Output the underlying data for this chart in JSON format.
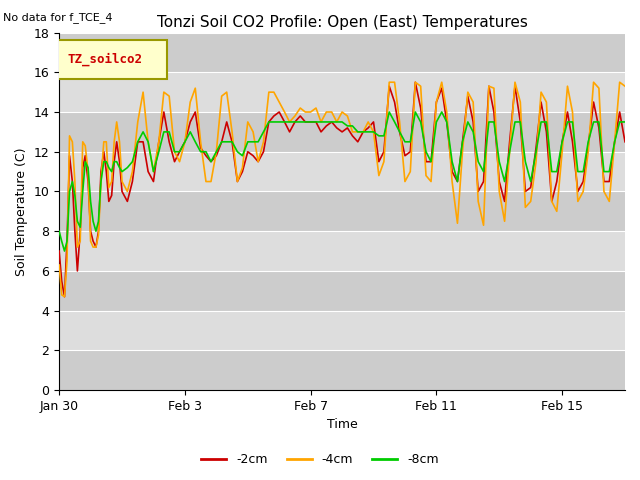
{
  "title": "Tonzi Soil CO2 Profile: Open (East) Temperatures",
  "subtitle": "No data for f_TCE_4",
  "xlabel": "Time",
  "ylabel": "Soil Temperature (C)",
  "ylim": [
    0,
    18
  ],
  "yticks": [
    0,
    2,
    4,
    6,
    8,
    10,
    12,
    14,
    16,
    18
  ],
  "legend_label": "TZ_soilco2",
  "series_labels": [
    "-2cm",
    "-4cm",
    "-8cm"
  ],
  "series_colors": [
    "#cc0000",
    "#ffa500",
    "#00cc00"
  ],
  "background_color": "#ffffff",
  "plot_bg_bands": [
    [
      0,
      2,
      "#cccccc"
    ],
    [
      2,
      4,
      "#dddddd"
    ],
    [
      4,
      6,
      "#cccccc"
    ],
    [
      6,
      8,
      "#dddddd"
    ],
    [
      8,
      10,
      "#cccccc"
    ],
    [
      10,
      12,
      "#dddddd"
    ],
    [
      12,
      14,
      "#cccccc"
    ],
    [
      14,
      16,
      "#dddddd"
    ],
    [
      16,
      18,
      "#cccccc"
    ]
  ],
  "xtick_labels": [
    "Jan 30",
    "Feb 3",
    "Feb 7",
    "Feb 11",
    "Feb 15"
  ],
  "xtick_positions": [
    0,
    4,
    8,
    12,
    16
  ],
  "xlim": [
    0,
    18.0
  ],
  "grid_color": "#ffffff",
  "title_fontsize": 11,
  "axis_fontsize": 9,
  "tick_fontsize": 9,
  "linewidth": 1.2,
  "t_2cm": [
    0.0,
    0.08,
    0.17,
    0.25,
    0.33,
    0.42,
    0.5,
    0.58,
    0.67,
    0.75,
    0.83,
    0.92,
    1.0,
    1.08,
    1.17,
    1.25,
    1.33,
    1.42,
    1.5,
    1.58,
    1.67,
    1.75,
    1.83,
    1.92,
    2.0,
    2.17,
    2.33,
    2.5,
    2.67,
    2.83,
    3.0,
    3.17,
    3.33,
    3.5,
    3.67,
    3.83,
    4.0,
    4.17,
    4.33,
    4.5,
    4.67,
    4.83,
    5.0,
    5.17,
    5.33,
    5.5,
    5.67,
    5.83,
    6.0,
    6.17,
    6.33,
    6.5,
    6.67,
    6.83,
    7.0,
    7.17,
    7.33,
    7.5,
    7.67,
    7.83,
    8.0,
    8.17,
    8.33,
    8.5,
    8.67,
    8.83,
    9.0,
    9.17,
    9.33,
    9.5,
    9.67,
    9.83,
    10.0,
    10.17,
    10.33,
    10.5,
    10.67,
    10.83,
    11.0,
    11.17,
    11.33,
    11.5,
    11.67,
    11.83,
    12.0,
    12.17,
    12.33,
    12.5,
    12.67,
    12.83,
    13.0,
    13.17,
    13.33,
    13.5,
    13.67,
    13.83,
    14.0,
    14.17,
    14.33,
    14.5,
    14.67,
    14.83,
    15.0,
    15.17,
    15.33,
    15.5,
    15.67,
    15.83,
    16.0,
    16.17,
    16.33,
    16.5,
    16.67,
    16.83,
    17.0,
    17.17,
    17.33,
    17.5,
    17.67,
    17.83,
    18.0
  ],
  "v_2cm": [
    7.0,
    5.5,
    4.7,
    7.5,
    11.8,
    10.5,
    8.0,
    6.0,
    8.0,
    11.2,
    11.8,
    10.5,
    8.0,
    7.5,
    7.2,
    8.0,
    11.0,
    12.0,
    11.0,
    9.5,
    9.8,
    11.5,
    12.5,
    11.5,
    10.0,
    9.5,
    10.5,
    12.5,
    12.5,
    11.0,
    10.5,
    12.5,
    14.0,
    12.5,
    11.5,
    12.0,
    12.5,
    13.5,
    14.0,
    12.2,
    11.8,
    11.5,
    11.8,
    12.5,
    13.5,
    12.5,
    10.5,
    11.0,
    12.0,
    11.8,
    11.5,
    12.0,
    13.5,
    13.8,
    14.0,
    13.5,
    13.0,
    13.5,
    13.8,
    13.5,
    13.5,
    13.5,
    13.0,
    13.3,
    13.5,
    13.2,
    13.0,
    13.2,
    12.8,
    12.5,
    13.0,
    13.2,
    13.5,
    11.5,
    12.0,
    15.3,
    14.5,
    13.0,
    11.8,
    12.0,
    15.5,
    14.2,
    11.5,
    11.5,
    14.5,
    15.2,
    13.5,
    11.0,
    10.5,
    12.5,
    14.8,
    13.5,
    10.0,
    10.5,
    15.3,
    14.0,
    10.5,
    9.5,
    12.5,
    15.3,
    13.5,
    10.0,
    10.2,
    12.2,
    14.5,
    13.0,
    9.5,
    10.5,
    12.5,
    14.0,
    12.5,
    10.0,
    10.5,
    12.3,
    14.5,
    13.2,
    10.5,
    10.5,
    12.5,
    14.0,
    12.5
  ],
  "v_4cm": [
    6.3,
    4.8,
    4.7,
    6.5,
    12.8,
    12.5,
    10.5,
    7.2,
    7.5,
    12.5,
    12.3,
    11.0,
    7.5,
    7.2,
    7.2,
    7.8,
    10.5,
    12.5,
    12.5,
    10.2,
    10.5,
    12.5,
    13.5,
    12.5,
    10.5,
    10.0,
    11.0,
    13.5,
    15.0,
    12.5,
    11.0,
    12.5,
    15.0,
    14.8,
    12.0,
    11.5,
    12.5,
    14.5,
    15.2,
    12.5,
    10.5,
    10.5,
    12.0,
    14.8,
    15.0,
    13.0,
    10.5,
    11.2,
    13.5,
    13.0,
    11.5,
    12.5,
    15.0,
    15.0,
    14.5,
    14.0,
    13.5,
    13.8,
    14.2,
    14.0,
    14.0,
    14.2,
    13.5,
    14.0,
    14.0,
    13.5,
    14.0,
    13.8,
    13.0,
    13.0,
    13.0,
    13.5,
    13.0,
    10.8,
    11.5,
    15.5,
    15.5,
    13.5,
    10.5,
    11.0,
    15.5,
    15.3,
    10.8,
    10.5,
    14.5,
    15.5,
    14.0,
    10.5,
    8.4,
    12.0,
    15.0,
    14.5,
    9.5,
    8.3,
    15.3,
    15.2,
    10.0,
    8.5,
    12.0,
    15.5,
    14.5,
    9.2,
    9.5,
    11.5,
    15.0,
    14.5,
    9.5,
    9.0,
    12.0,
    15.3,
    14.0,
    9.5,
    10.0,
    12.0,
    15.5,
    15.2,
    10.0,
    9.5,
    12.5,
    15.5,
    15.3
  ],
  "v_8cm": [
    8.0,
    7.5,
    7.0,
    7.5,
    10.0,
    10.5,
    9.8,
    8.5,
    8.2,
    10.0,
    11.5,
    11.2,
    9.5,
    8.5,
    8.0,
    8.5,
    10.5,
    11.5,
    11.5,
    11.2,
    11.0,
    11.5,
    11.5,
    11.2,
    11.0,
    11.2,
    11.5,
    12.5,
    13.0,
    12.5,
    11.0,
    12.0,
    13.0,
    13.0,
    12.0,
    12.0,
    12.5,
    13.0,
    12.5,
    12.0,
    12.0,
    11.5,
    12.0,
    12.5,
    12.5,
    12.5,
    12.0,
    11.8,
    12.5,
    12.5,
    12.5,
    13.0,
    13.5,
    13.5,
    13.5,
    13.5,
    13.5,
    13.5,
    13.5,
    13.5,
    13.5,
    13.5,
    13.5,
    13.5,
    13.5,
    13.5,
    13.5,
    13.3,
    13.3,
    13.0,
    13.0,
    13.0,
    13.0,
    12.8,
    12.8,
    14.0,
    13.5,
    13.0,
    12.5,
    12.5,
    14.0,
    13.5,
    12.0,
    11.5,
    13.5,
    14.0,
    13.5,
    11.5,
    10.5,
    12.5,
    13.5,
    13.0,
    11.5,
    11.0,
    13.5,
    13.5,
    11.5,
    10.5,
    12.0,
    13.5,
    13.5,
    11.5,
    10.5,
    12.0,
    13.5,
    13.5,
    11.0,
    11.0,
    12.5,
    13.5,
    13.5,
    11.0,
    11.0,
    12.5,
    13.5,
    13.5,
    11.0,
    11.0,
    12.5,
    13.5,
    13.5
  ]
}
